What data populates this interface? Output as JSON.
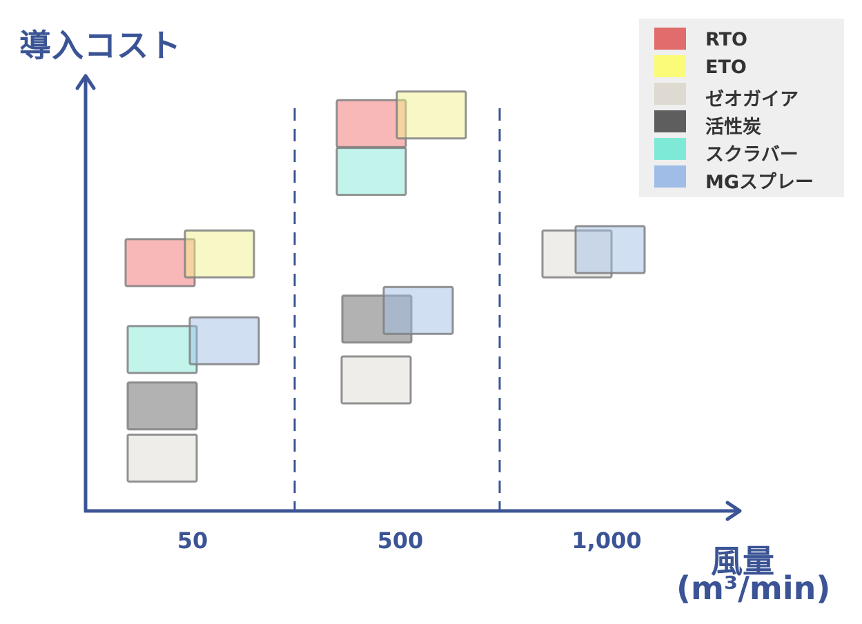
{
  "chart_data": {
    "type": "range",
    "ylabel": "導入コスト",
    "xlabel": "風量",
    "xunit": "(m³/min)",
    "categories": [
      "50",
      "500",
      "1,000"
    ],
    "legend_position": "top-right",
    "series": [
      {
        "name": "RTO",
        "color": "#f26b6b",
        "values": [
          {
            "x": "50",
            "cost": 0.57
          },
          {
            "x": "500",
            "cost": 0.89
          }
        ]
      },
      {
        "name": "ETO",
        "color": "#f0f08a",
        "values": [
          {
            "x": "50",
            "cost": 0.59
          },
          {
            "x": "500",
            "cost": 0.91
          }
        ]
      },
      {
        "name": "ゼオガイア",
        "color": "#dedad1",
        "values": [
          {
            "x": "50",
            "cost": 0.12
          },
          {
            "x": "500",
            "cost": 0.3
          },
          {
            "x": "1,000",
            "cost": 0.59
          }
        ]
      },
      {
        "name": "活性炭",
        "color": "#5e5e5e",
        "values": [
          {
            "x": "50",
            "cost": 0.24
          },
          {
            "x": "500",
            "cost": 0.44
          }
        ]
      },
      {
        "name": "スクラバー",
        "color": "#7fe9d8",
        "values": [
          {
            "x": "50",
            "cost": 0.37
          },
          {
            "x": "500",
            "cost": 0.78
          }
        ]
      },
      {
        "name": "MGスプレー",
        "color": "#9fbde6",
        "values": [
          {
            "x": "50",
            "cost": 0.39
          },
          {
            "x": "500",
            "cost": 0.46
          },
          {
            "x": "1,000",
            "cost": 0.6
          }
        ]
      }
    ]
  }
}
